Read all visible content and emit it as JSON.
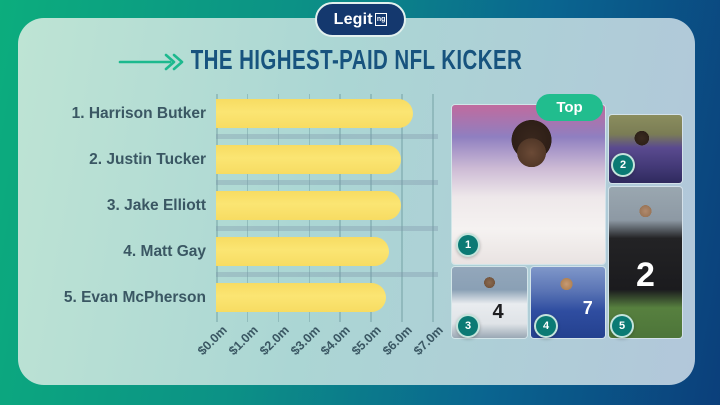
{
  "brand": {
    "logo_text": "Legit",
    "logo_suffix": "ng"
  },
  "header": {
    "title": "THE HIGHEST-PAID NFL KICKER"
  },
  "chart_data": {
    "type": "bar",
    "orientation": "horizontal",
    "title": "The Highest-Paid NFL Kicker",
    "categories": [
      "1. Harrison Butker",
      "2. Justin Tucker",
      "3. Jake Elliott",
      "4. Matt Gay",
      "5. Evan McPherson"
    ],
    "values": [
      6.4,
      6.0,
      6.0,
      5.6,
      5.5
    ],
    "value_unit": "millions of dollars",
    "xlim": [
      0,
      7
    ],
    "x_ticks": [
      "$0.0m",
      "$1.0m",
      "$2.0m",
      "$3.0m",
      "$4.0m",
      "$5.0m",
      "$6.0m",
      "$7.0m"
    ],
    "bar_color": "#FAE16B",
    "grid": true,
    "legend_position": "none"
  },
  "collage": {
    "top_badge_label": "Top",
    "items": [
      {
        "rank": "1",
        "player": "Harrison Butker",
        "jersey_number": ""
      },
      {
        "rank": "2",
        "player": "Justin Tucker",
        "jersey_number": ""
      },
      {
        "rank": "3",
        "player": "Jake Elliott",
        "jersey_number": "4"
      },
      {
        "rank": "4",
        "player": "Matt Gay",
        "jersey_number": "7"
      },
      {
        "rank": "5",
        "player": "Evan McPherson",
        "jersey_number": "2"
      }
    ]
  },
  "colors": {
    "background_gradient_start": "#0CAD7D",
    "background_gradient_end": "#0B3F7B",
    "card_gradient_start": "#BEE4D4",
    "card_gradient_end": "#B2C7DA",
    "title_text": "#17537E",
    "label_text": "#3A5763",
    "bar_fill": "#FAE16B",
    "accent_green": "#21BD8E",
    "badge_fill": "#0B7A74",
    "logo_fill": "#14386E"
  }
}
